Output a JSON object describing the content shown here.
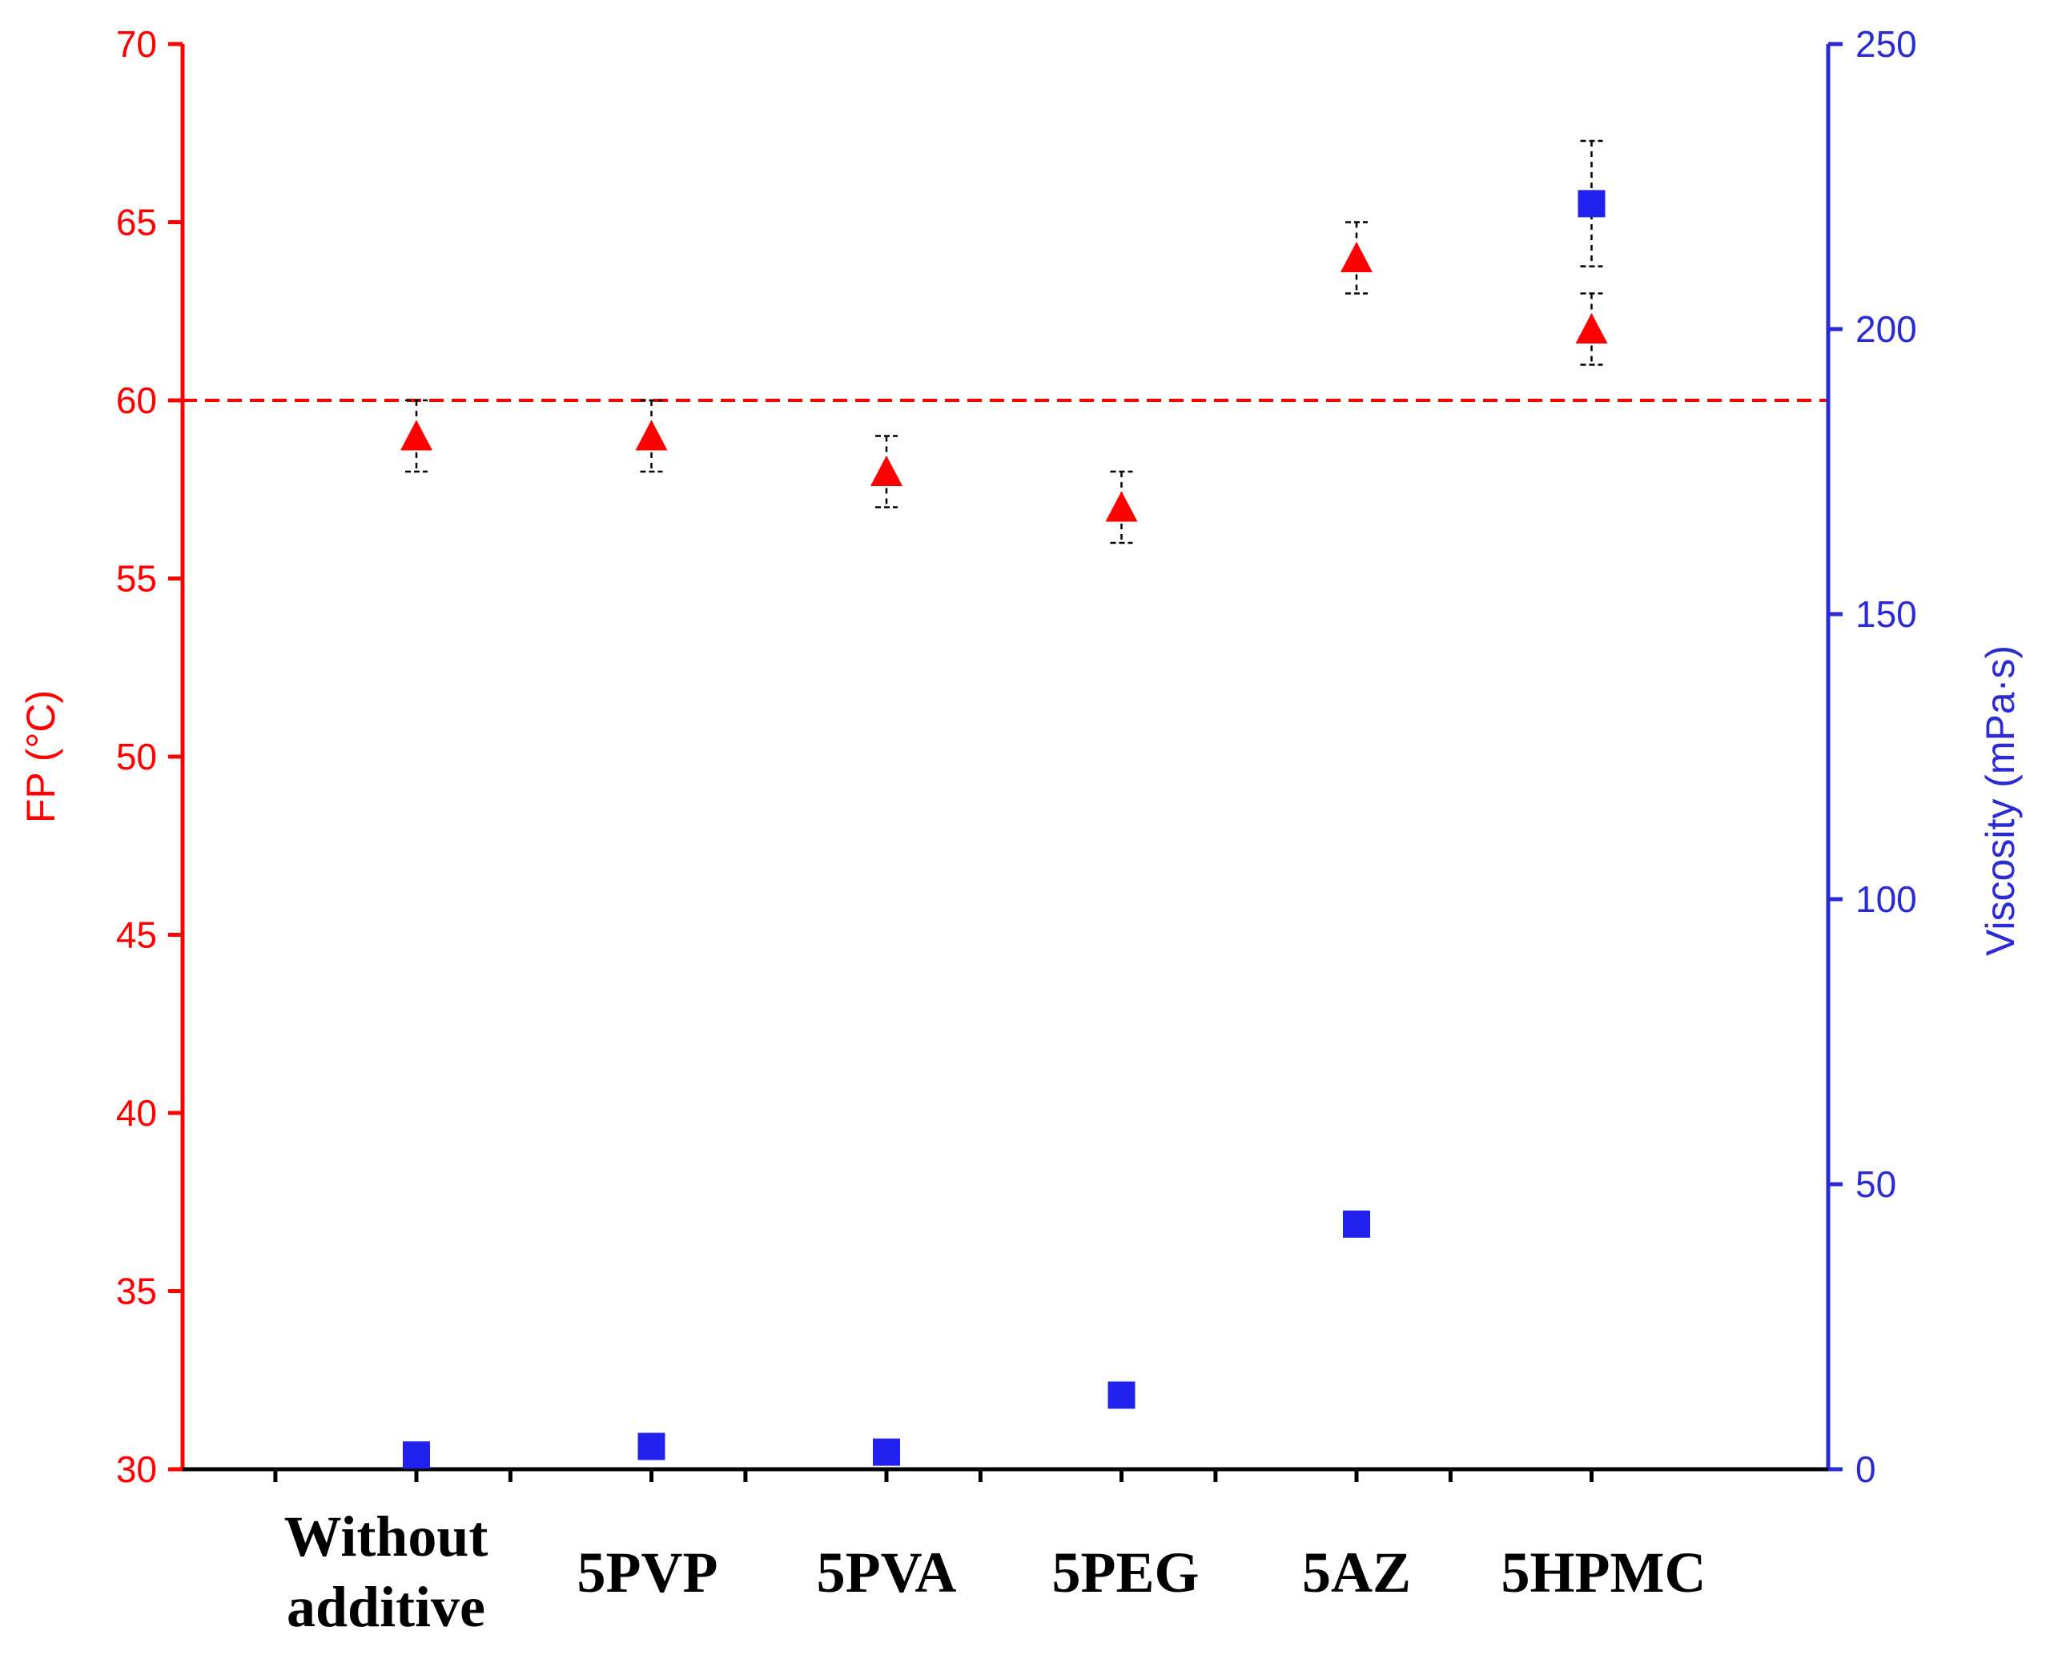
{
  "chart_data": {
    "type": "scatter",
    "categories": [
      [
        "Without",
        "additive"
      ],
      [
        "5PVP"
      ],
      [
        "5PVA"
      ],
      [
        "5PEG"
      ],
      [
        "5AZ"
      ],
      [
        "5HPMC"
      ]
    ],
    "y_left": {
      "label": "FP (°C)",
      "ylim": [
        30,
        70
      ],
      "ticks": [
        "30",
        "35",
        "40",
        "45",
        "50",
        "55",
        "60",
        "65",
        "70"
      ],
      "color": "#ff0000"
    },
    "y_right": {
      "label": "Viscosity (mPa·s)",
      "ylim": [
        0,
        250
      ],
      "ticks": [
        "0",
        "50",
        "100",
        "150",
        "200",
        "250"
      ],
      "color": "#2b2bd6"
    },
    "reference_line": {
      "axis": "left",
      "value": 60,
      "style": "dashed",
      "color": "#ff0000"
    },
    "series": [
      {
        "name": "FP",
        "axis": "left",
        "marker": "triangle",
        "color": "#ff0000",
        "values": [
          59,
          59,
          58,
          57,
          64,
          62
        ],
        "error": [
          1,
          1,
          1,
          1,
          1,
          1
        ]
      },
      {
        "name": "Viscosity",
        "axis": "right",
        "marker": "square",
        "color": "#2222ee",
        "values": [
          2.5,
          4,
          3,
          13,
          43,
          222
        ],
        "error": [
          0,
          0,
          0,
          0,
          0,
          11
        ]
      }
    ]
  }
}
